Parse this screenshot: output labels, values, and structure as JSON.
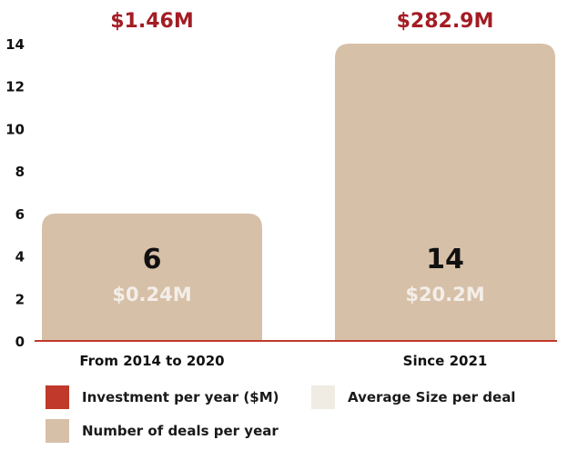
{
  "chart_data": {
    "type": "bar",
    "categories": [
      "From 2014 to 2020",
      "Since 2021"
    ],
    "series": [
      {
        "name": "Number of deals per year",
        "values": [
          6,
          14
        ]
      }
    ],
    "top_labels": [
      "$1.46M",
      "$282.9M"
    ],
    "count_labels": [
      "6",
      "14"
    ],
    "avg_labels": [
      "$0.24M",
      "$20.2M"
    ],
    "ylim": [
      0,
      14
    ],
    "yticks": [
      0,
      2,
      4,
      6,
      8,
      10,
      12,
      14
    ],
    "grid": false,
    "legend_position": "bottom"
  },
  "legend": {
    "investment": {
      "label": "Investment per year ($M)",
      "color": "#c0392b"
    },
    "avg_size": {
      "label": "Average Size per deal",
      "color": "#f0ece4"
    },
    "deals": {
      "label": "Number of deals per year",
      "color": "#d7c0a8"
    }
  },
  "colors": {
    "bar": "#d7c0a8",
    "top_label": "#a41c24",
    "baseline": "#c0392b",
    "avg_label": "#f3eee8",
    "count_label": "#111111"
  }
}
